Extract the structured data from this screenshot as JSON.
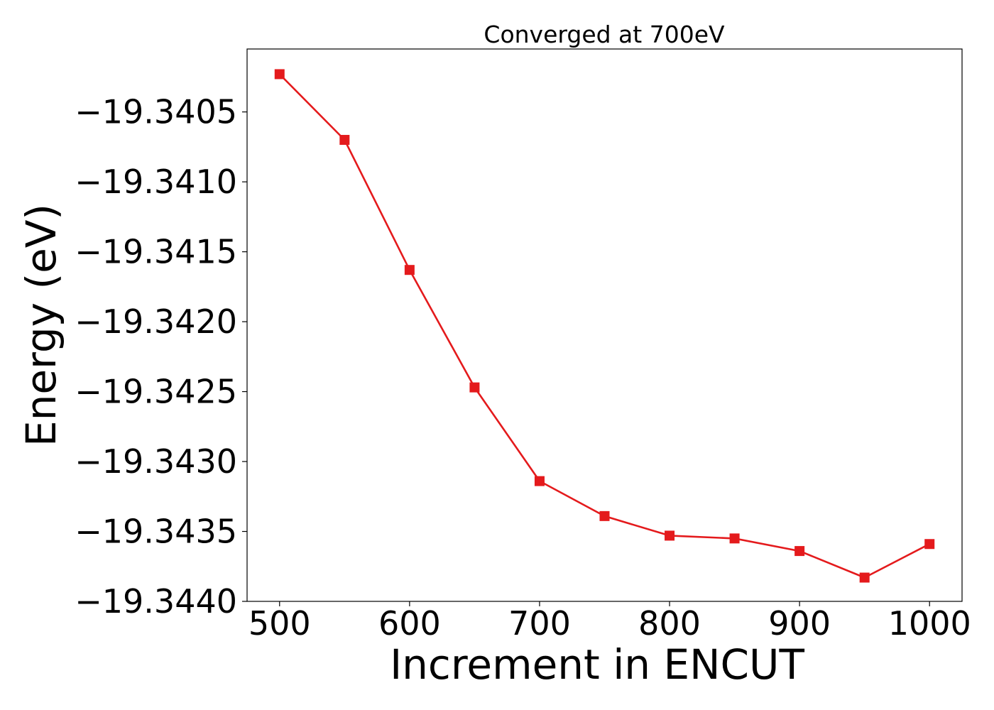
{
  "chart_data": {
    "type": "line",
    "title": "Converged at 700eV",
    "xlabel": "Increment in ENCUT",
    "ylabel": "Energy (eV)",
    "x": [
      500,
      550,
      600,
      650,
      700,
      750,
      800,
      850,
      900,
      950,
      1000
    ],
    "series": [
      {
        "values": [
          -19.34023,
          -19.3407,
          -19.34163,
          -19.34247,
          -19.34314,
          -19.34339,
          -19.34353,
          -19.34355,
          -19.34364,
          -19.34383,
          -19.34359
        ],
        "color": "#e41a1c",
        "marker": "square"
      }
    ],
    "xlim": [
      475,
      1025
    ],
    "ylim": [
      -19.344,
      -19.34005
    ],
    "xticks": [
      500,
      600,
      700,
      800,
      900,
      1000
    ],
    "xtick_labels": [
      "500",
      "600",
      "700",
      "800",
      "900",
      "1000"
    ],
    "yticks": [
      -19.344,
      -19.3435,
      -19.343,
      -19.3425,
      -19.342,
      -19.3415,
      -19.341,
      -19.3405
    ],
    "ytick_labels": [
      "−19.3440",
      "−19.3435",
      "−19.3430",
      "−19.3425",
      "−19.3420",
      "−19.3415",
      "−19.3410",
      "−19.3405"
    ],
    "grid": false,
    "legend": false
  }
}
